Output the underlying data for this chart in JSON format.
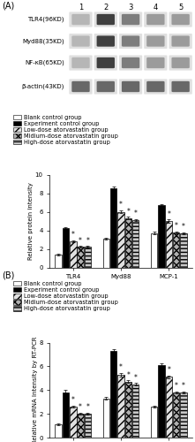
{
  "panel_A_label": "(A)",
  "panel_B_label": "(B)",
  "western_bands": {
    "labels": [
      "TLR4(96KD)",
      "Myd88(35KD)",
      "NF-κB(65KD)",
      "β-actin(43KD)"
    ],
    "lane_nums": [
      "1",
      "2",
      "3",
      "4",
      "5"
    ]
  },
  "legend_labels": [
    "Blank control group",
    "Experiment control group",
    "Low-dose atorvastatin group",
    "Midium-dose atorvastatin group",
    "High-dose atorvastatin group"
  ],
  "groups": [
    "TLR4",
    "Myd88",
    "MCP-1"
  ],
  "protein_data": {
    "means": [
      [
        1.4,
        4.2,
        2.8,
        2.2,
        2.2
      ],
      [
        3.1,
        8.5,
        6.0,
        5.3,
        5.1
      ],
      [
        3.7,
        6.7,
        5.0,
        3.8,
        3.7
      ]
    ],
    "errors": [
      [
        0.1,
        0.15,
        0.12,
        0.1,
        0.1
      ],
      [
        0.1,
        0.2,
        0.15,
        0.15,
        0.12
      ],
      [
        0.12,
        0.15,
        0.15,
        0.1,
        0.1
      ]
    ],
    "star_mask": [
      [
        false,
        false,
        true,
        true,
        true
      ],
      [
        false,
        false,
        true,
        true,
        true
      ],
      [
        false,
        false,
        true,
        true,
        true
      ]
    ]
  },
  "mRNA_data": {
    "means": [
      [
        1.1,
        3.8,
        2.6,
        2.0,
        2.0
      ],
      [
        3.3,
        7.3,
        5.3,
        4.7,
        4.5
      ],
      [
        2.6,
        6.1,
        5.1,
        3.8,
        3.8
      ]
    ],
    "errors": [
      [
        0.08,
        0.2,
        0.1,
        0.08,
        0.08
      ],
      [
        0.12,
        0.12,
        0.15,
        0.12,
        0.1
      ],
      [
        0.1,
        0.15,
        0.12,
        0.1,
        0.1
      ]
    ],
    "star_mask": [
      [
        false,
        false,
        true,
        true,
        true
      ],
      [
        false,
        false,
        true,
        true,
        true
      ],
      [
        false,
        false,
        true,
        true,
        true
      ]
    ]
  },
  "protein_ylabel": "Relative protein intensity",
  "mrna_ylabel": "Relative mRNA Intensity by RT-PCR",
  "protein_ylim": [
    0,
    10
  ],
  "mrna_ylim": [
    0,
    8
  ],
  "protein_yticks": [
    0,
    2,
    4,
    6,
    8,
    10
  ],
  "mrna_yticks": [
    0,
    2,
    4,
    6,
    8
  ],
  "bg_color": "white",
  "fig_width": 2.21,
  "fig_height": 5.0,
  "dpi": 100,
  "intensity_map": [
    [
      0.35,
      0.92,
      0.62,
      0.48,
      0.48
    ],
    [
      0.35,
      0.92,
      0.62,
      0.48,
      0.48
    ],
    [
      0.35,
      0.92,
      0.62,
      0.48,
      0.48
    ],
    [
      0.72,
      0.72,
      0.72,
      0.72,
      0.72
    ]
  ]
}
